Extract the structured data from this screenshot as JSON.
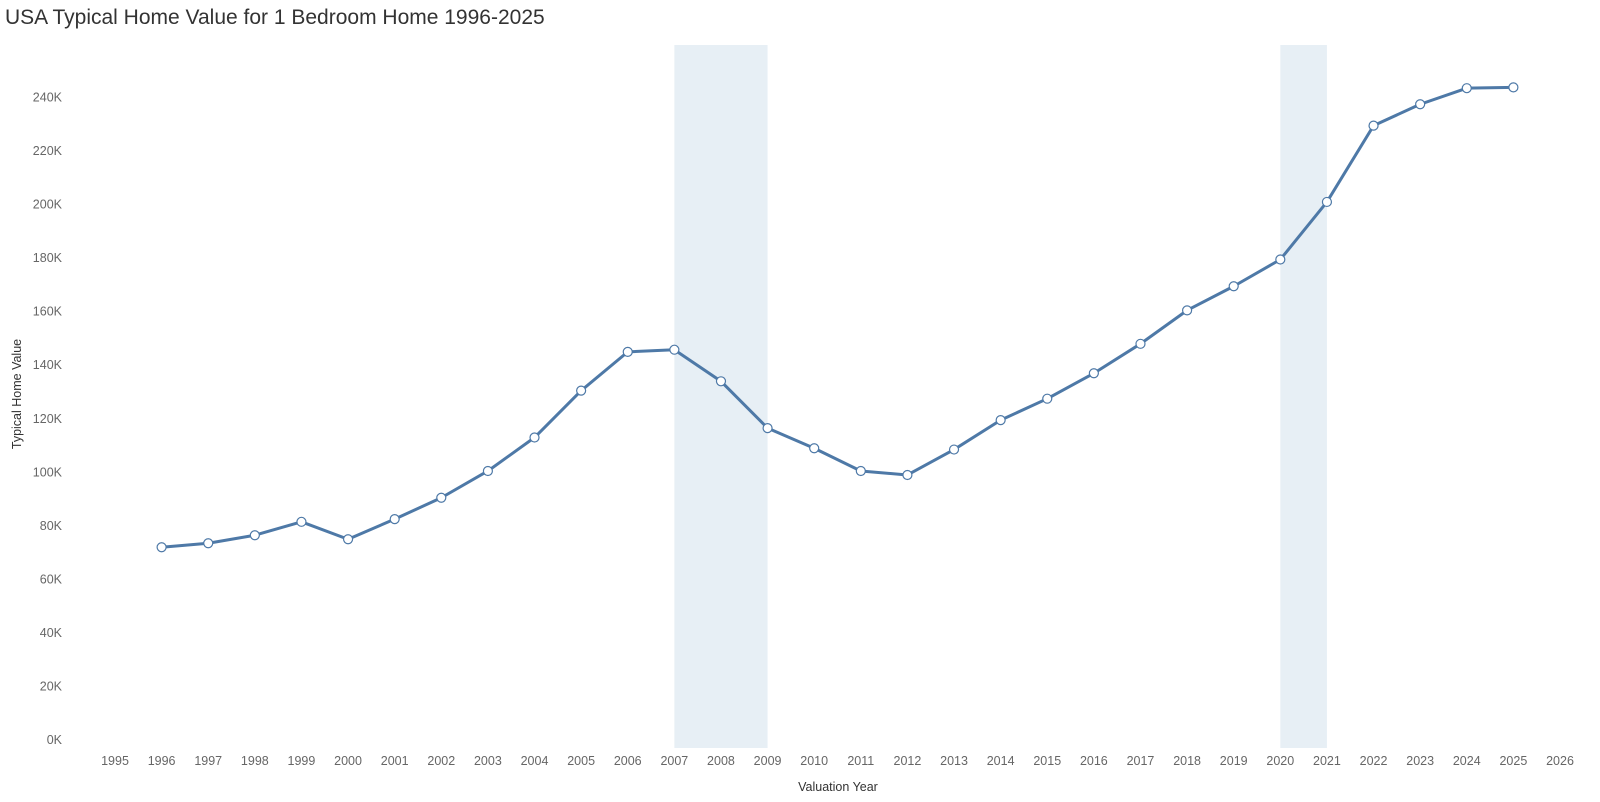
{
  "chart_data": {
    "type": "line",
    "title": "USA Typical Home Value for 1 Bedroom Home 1996-2025",
    "xlabel": "Valuation Year",
    "ylabel": "Typical Home Value",
    "xlim": [
      1995,
      2026
    ],
    "ylim": [
      0,
      260000
    ],
    "x_ticks": [
      "1995",
      "1996",
      "1997",
      "1998",
      "1999",
      "2000",
      "2001",
      "2002",
      "2003",
      "2004",
      "2005",
      "2006",
      "2007",
      "2008",
      "2009",
      "2010",
      "2011",
      "2012",
      "2013",
      "2014",
      "2015",
      "2016",
      "2017",
      "2018",
      "2019",
      "2020",
      "2021",
      "2022",
      "2023",
      "2024",
      "2025",
      "2026"
    ],
    "y_ticks": [
      {
        "value": 0,
        "label": "0K"
      },
      {
        "value": 20000,
        "label": "20K"
      },
      {
        "value": 40000,
        "label": "40K"
      },
      {
        "value": 60000,
        "label": "60K"
      },
      {
        "value": 80000,
        "label": "80K"
      },
      {
        "value": 100000,
        "label": "100K"
      },
      {
        "value": 120000,
        "label": "120K"
      },
      {
        "value": 140000,
        "label": "140K"
      },
      {
        "value": 160000,
        "label": "160K"
      },
      {
        "value": 180000,
        "label": "180K"
      },
      {
        "value": 200000,
        "label": "200K"
      },
      {
        "value": 220000,
        "label": "220K"
      },
      {
        "value": 240000,
        "label": "240K"
      }
    ],
    "grid": false,
    "line_color": "#4e79a7",
    "marker_fill": "#ffffff",
    "shaded_periods": [
      {
        "start": 2007,
        "end": 2009
      },
      {
        "start": 2020,
        "end": 2021
      }
    ],
    "shade_color": "#e7eff5",
    "series": [
      {
        "x": [
          1996,
          1997,
          1998,
          1999,
          2000,
          2001,
          2002,
          2003,
          2004,
          2005,
          2006,
          2007,
          2008,
          2009,
          2010,
          2011,
          2012,
          2013,
          2014,
          2015,
          2016,
          2017,
          2018,
          2019,
          2020,
          2021,
          2022,
          2023,
          2024,
          2025
        ],
        "values": [
          72000,
          73500,
          76500,
          81500,
          75000,
          82500,
          90500,
          100500,
          113000,
          130500,
          145000,
          145800,
          134000,
          116500,
          109000,
          100500,
          99000,
          108500,
          119500,
          127500,
          137000,
          148000,
          160500,
          169500,
          179500,
          201000,
          229500,
          237500,
          243500,
          243800
        ]
      }
    ]
  }
}
